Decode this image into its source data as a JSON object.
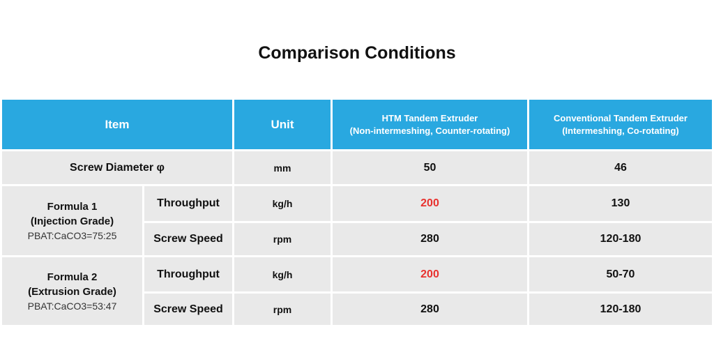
{
  "title": "Comparison Conditions",
  "header": {
    "item": "Item",
    "unit": "Unit",
    "htm_line1": "HTM Tandem Extruder",
    "htm_line2": "(Non-intermeshing, Counter-rotating)",
    "conv_line1": "Conventional Tandem Extruder",
    "conv_line2": "(Intermeshing, Co-rotating)"
  },
  "screw_diameter": {
    "label": "Screw Diameter φ",
    "unit": "mm",
    "htm": "50",
    "conv": "46"
  },
  "formula1": {
    "name": "Formula 1",
    "grade": "(Injection Grade)",
    "ratio": "PBAT:CaCO3=75:25",
    "throughput": {
      "label": "Throughput",
      "unit": "kg/h",
      "htm": "200",
      "conv": "130"
    },
    "screw_speed": {
      "label": "Screw Speed",
      "unit": "rpm",
      "htm": "280",
      "conv": "120-180"
    }
  },
  "formula2": {
    "name": "Formula 2",
    "grade": "(Extrusion Grade)",
    "ratio": "PBAT:CaCO3=53:47",
    "throughput": {
      "label": "Throughput",
      "unit": "kg/h",
      "htm": "200",
      "conv": "50-70"
    },
    "screw_speed": {
      "label": "Screw Speed",
      "unit": "rpm",
      "htm": "280",
      "conv": "120-180"
    }
  },
  "colors": {
    "header_bg": "#29a8e0",
    "cell_bg": "#e9e9e9",
    "highlight": "#e8322f"
  }
}
